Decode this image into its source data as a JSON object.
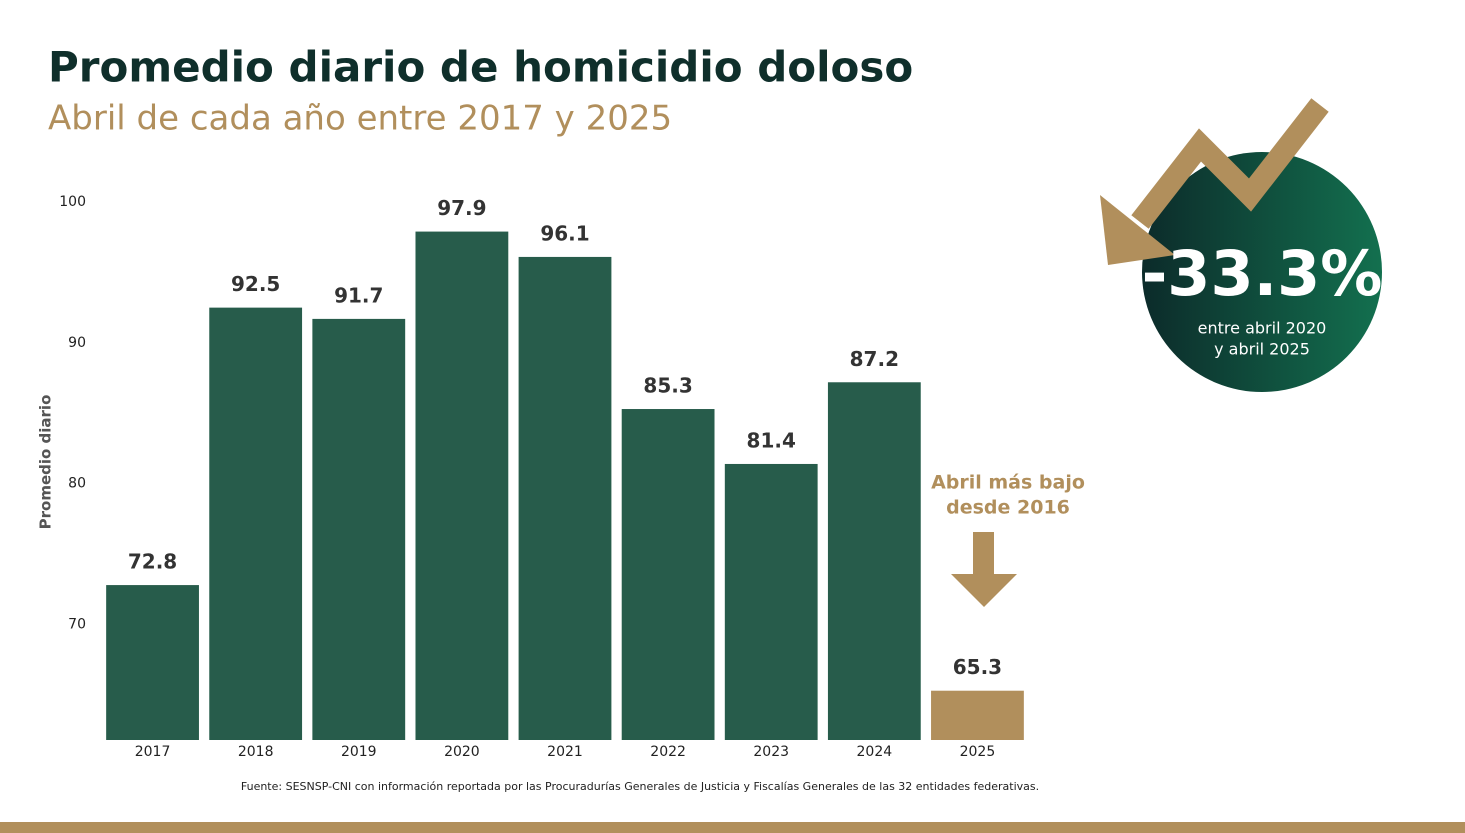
{
  "chart_data": {
    "type": "bar",
    "title": "Promedio diario de homicidio doloso",
    "subtitle": "Abril de cada año entre 2017 y 2025",
    "ylabel": "Promedio diario",
    "categories": [
      "2017",
      "2018",
      "2019",
      "2020",
      "2021",
      "2022",
      "2023",
      "2024",
      "2025"
    ],
    "values": [
      72.8,
      92.5,
      91.7,
      97.9,
      96.1,
      85.3,
      81.4,
      87.2,
      65.3
    ],
    "colors": [
      "#275c4b",
      "#275c4b",
      "#275c4b",
      "#275c4b",
      "#275c4b",
      "#275c4b",
      "#275c4b",
      "#275c4b",
      "#b18f5c"
    ],
    "ylim": [
      61.8,
      100
    ],
    "yticks": [
      70,
      80,
      90,
      100
    ],
    "grid": false,
    "annotation": [
      "Abril más bajo",
      "desde 2016"
    ],
    "callout": {
      "value": "-33.3%",
      "text": [
        "entre abril 2020",
        "y abril 2025"
      ]
    },
    "source": "Fuente: SESNSP-CNI con información reportada por las Procuradurías Generales de Justicia y Fiscalías Generales de las 32 entidades federativas."
  }
}
